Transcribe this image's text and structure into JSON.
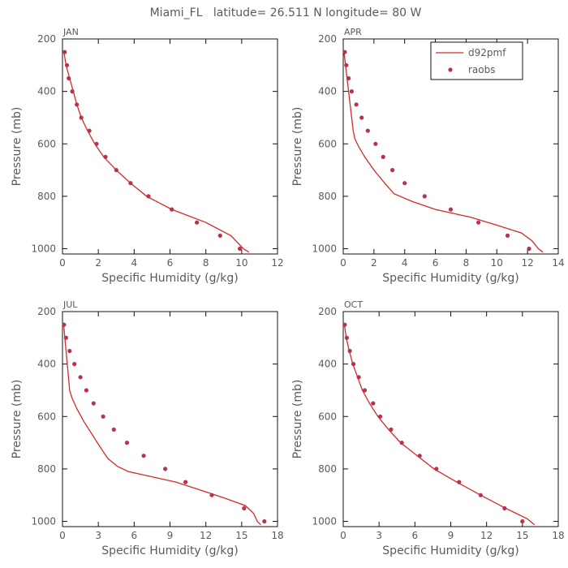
{
  "title": "Miami_FL   latitude= 26.511 N longitude= 80 W",
  "colors": {
    "model": "#d42a2a",
    "obs": "#b8344e",
    "axis": "#111111",
    "text": "#5a5a5a"
  },
  "legend": {
    "model_label": "d92pmf",
    "obs_label": "raobs"
  },
  "chart_data": [
    {
      "type": "line",
      "month": "JAN",
      "xlabel": "Specific Humidity (g/kg)",
      "ylabel": "Pressure (mb)",
      "xlim": [
        0,
        12
      ],
      "xticks": [
        0,
        2,
        4,
        6,
        8,
        10,
        12
      ],
      "xtick_labels": [
        "0",
        "2",
        "4",
        "6",
        "8",
        "10",
        "12"
      ],
      "ylim": [
        200,
        1020
      ],
      "yticks": [
        200,
        400,
        600,
        800,
        1000
      ],
      "ytick_labels": [
        "200",
        "400",
        "600",
        "800",
        "1000"
      ],
      "series": [
        {
          "name": "d92pmf",
          "kind": "line",
          "points": [
            [
              0.08,
              250
            ],
            [
              0.2,
              300
            ],
            [
              0.4,
              350
            ],
            [
              0.6,
              400
            ],
            [
              0.8,
              450
            ],
            [
              1.05,
              500
            ],
            [
              1.4,
              550
            ],
            [
              1.8,
              600
            ],
            [
              2.3,
              650
            ],
            [
              3.0,
              700
            ],
            [
              3.8,
              750
            ],
            [
              4.7,
              800
            ],
            [
              6.1,
              850
            ],
            [
              8.0,
              900
            ],
            [
              9.4,
              950
            ],
            [
              10.1,
              1000
            ],
            [
              10.4,
              1013
            ]
          ]
        },
        {
          "name": "raobs",
          "kind": "scatter",
          "points": [
            [
              0.12,
              250
            ],
            [
              0.25,
              300
            ],
            [
              0.35,
              350
            ],
            [
              0.55,
              400
            ],
            [
              0.8,
              450
            ],
            [
              1.05,
              500
            ],
            [
              1.5,
              550
            ],
            [
              1.9,
              600
            ],
            [
              2.4,
              650
            ],
            [
              3.0,
              700
            ],
            [
              3.8,
              750
            ],
            [
              4.8,
              800
            ],
            [
              6.1,
              850
            ],
            [
              7.5,
              900
            ],
            [
              8.8,
              950
            ],
            [
              9.9,
              1000
            ]
          ]
        }
      ]
    },
    {
      "type": "line",
      "month": "APR",
      "xlabel": "Specific Humidity (g/kg)",
      "ylabel": "Pressure (mb)",
      "xlim": [
        0,
        14
      ],
      "xticks": [
        0,
        2,
        4,
        6,
        8,
        10,
        12,
        14
      ],
      "xtick_labels": [
        "0",
        "2",
        "4",
        "6",
        "8",
        "10",
        "12",
        "14"
      ],
      "ylim": [
        200,
        1020
      ],
      "yticks": [
        200,
        400,
        600,
        800,
        1000
      ],
      "ytick_labels": [
        "200",
        "400",
        "600",
        "800",
        "1000"
      ],
      "series": [
        {
          "name": "d92pmf",
          "kind": "line",
          "points": [
            [
              0.05,
              250
            ],
            [
              0.15,
              300
            ],
            [
              0.25,
              350
            ],
            [
              0.35,
              400
            ],
            [
              0.45,
              450
            ],
            [
              0.55,
              500
            ],
            [
              0.65,
              550
            ],
            [
              0.75,
              580
            ],
            [
              1.0,
              610
            ],
            [
              1.4,
              650
            ],
            [
              2.0,
              700
            ],
            [
              2.7,
              750
            ],
            [
              3.3,
              790
            ],
            [
              4.5,
              820
            ],
            [
              6.0,
              850
            ],
            [
              8.3,
              880
            ],
            [
              10.0,
              910
            ],
            [
              11.6,
              940
            ],
            [
              12.3,
              970
            ],
            [
              12.7,
              1000
            ],
            [
              13.0,
              1013
            ]
          ]
        },
        {
          "name": "raobs",
          "kind": "scatter",
          "points": [
            [
              0.1,
              250
            ],
            [
              0.2,
              300
            ],
            [
              0.35,
              350
            ],
            [
              0.55,
              400
            ],
            [
              0.85,
              450
            ],
            [
              1.2,
              500
            ],
            [
              1.6,
              550
            ],
            [
              2.1,
              600
            ],
            [
              2.6,
              650
            ],
            [
              3.2,
              700
            ],
            [
              4.0,
              750
            ],
            [
              5.3,
              800
            ],
            [
              7.0,
              850
            ],
            [
              8.8,
              900
            ],
            [
              10.7,
              950
            ],
            [
              12.1,
              1000
            ]
          ]
        }
      ]
    },
    {
      "type": "line",
      "month": "JUL",
      "xlabel": "Specific Humidity (g/kg)",
      "ylabel": "Pressure (mb)",
      "xlim": [
        0,
        18
      ],
      "xticks": [
        0,
        3,
        6,
        9,
        12,
        15,
        18
      ],
      "xtick_labels": [
        "0",
        "3",
        "6",
        "9",
        "12",
        "15",
        "18"
      ],
      "ylim": [
        200,
        1020
      ],
      "yticks": [
        200,
        400,
        600,
        800,
        1000
      ],
      "ytick_labels": [
        "200",
        "400",
        "600",
        "800",
        "1000"
      ],
      "series": [
        {
          "name": "d92pmf",
          "kind": "line",
          "points": [
            [
              0.1,
              250
            ],
            [
              0.2,
              300
            ],
            [
              0.3,
              350
            ],
            [
              0.4,
              400
            ],
            [
              0.5,
              450
            ],
            [
              0.6,
              500
            ],
            [
              0.8,
              530
            ],
            [
              1.2,
              570
            ],
            [
              1.8,
              620
            ],
            [
              2.5,
              670
            ],
            [
              3.2,
              720
            ],
            [
              3.8,
              760
            ],
            [
              4.6,
              790
            ],
            [
              5.5,
              810
            ],
            [
              7.5,
              830
            ],
            [
              9.5,
              850
            ],
            [
              11.5,
              880
            ],
            [
              13.5,
              910
            ],
            [
              15.3,
              940
            ],
            [
              16.0,
              970
            ],
            [
              16.3,
              1000
            ],
            [
              16.6,
              1013
            ]
          ]
        },
        {
          "name": "raobs",
          "kind": "scatter",
          "points": [
            [
              0.12,
              250
            ],
            [
              0.3,
              300
            ],
            [
              0.6,
              350
            ],
            [
              1.0,
              400
            ],
            [
              1.5,
              450
            ],
            [
              2.0,
              500
            ],
            [
              2.6,
              550
            ],
            [
              3.4,
              600
            ],
            [
              4.3,
              650
            ],
            [
              5.4,
              700
            ],
            [
              6.8,
              750
            ],
            [
              8.6,
              800
            ],
            [
              10.3,
              850
            ],
            [
              12.5,
              900
            ],
            [
              15.2,
              950
            ],
            [
              16.9,
              1000
            ]
          ]
        }
      ]
    },
    {
      "type": "line",
      "month": "OCT",
      "xlabel": "Specific Humidity (g/kg)",
      "ylabel": "Pressure (mb)",
      "xlim": [
        0,
        18
      ],
      "xticks": [
        0,
        3,
        6,
        9,
        12,
        15,
        18
      ],
      "xtick_labels": [
        "0",
        "3",
        "6",
        "9",
        "12",
        "15",
        "18"
      ],
      "ylim": [
        200,
        1020
      ],
      "yticks": [
        200,
        400,
        600,
        800,
        1000
      ],
      "ytick_labels": [
        "200",
        "400",
        "600",
        "800",
        "1000"
      ],
      "series": [
        {
          "name": "d92pmf",
          "kind": "line",
          "points": [
            [
              0.1,
              250
            ],
            [
              0.25,
              300
            ],
            [
              0.5,
              350
            ],
            [
              0.8,
              400
            ],
            [
              1.2,
              450
            ],
            [
              1.6,
              500
            ],
            [
              2.2,
              550
            ],
            [
              2.9,
              600
            ],
            [
              3.8,
              650
            ],
            [
              4.8,
              700
            ],
            [
              6.2,
              750
            ],
            [
              7.6,
              800
            ],
            [
              9.5,
              850
            ],
            [
              11.5,
              900
            ],
            [
              13.6,
              950
            ],
            [
              15.4,
              990
            ],
            [
              16.0,
              1013
            ]
          ]
        },
        {
          "name": "raobs",
          "kind": "scatter",
          "points": [
            [
              0.12,
              250
            ],
            [
              0.3,
              300
            ],
            [
              0.55,
              350
            ],
            [
              0.85,
              400
            ],
            [
              1.3,
              450
            ],
            [
              1.8,
              500
            ],
            [
              2.5,
              550
            ],
            [
              3.1,
              600
            ],
            [
              4.0,
              650
            ],
            [
              4.9,
              700
            ],
            [
              6.4,
              750
            ],
            [
              7.8,
              800
            ],
            [
              9.7,
              850
            ],
            [
              11.5,
              900
            ],
            [
              13.5,
              950
            ],
            [
              15.0,
              1000
            ]
          ]
        }
      ]
    }
  ]
}
